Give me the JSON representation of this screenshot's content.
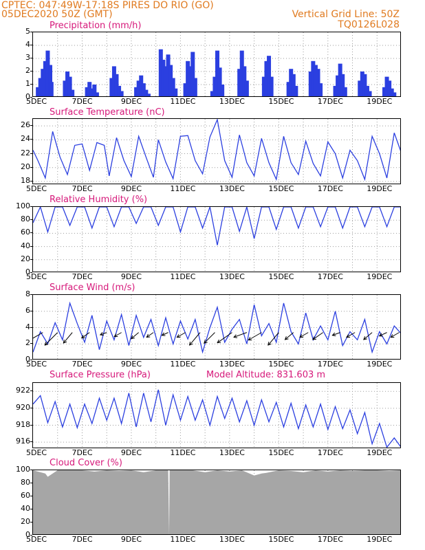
{
  "header": {
    "line1_left": "CPTEC:   047:49W-17:18S   PIRES DO RIO (GO)",
    "line2_left": "05DEC2020 50Z (GMT)",
    "line2_right": "Vertical Grid Line: 50Z",
    "line3_right": "TQ0126L028",
    "model_altitude": "Model Altitude: 831.603 m"
  },
  "colors": {
    "header": "#e07a1f",
    "title": "#d6187a",
    "series": "#2b3fe0",
    "cloud": "#a6a6a6"
  },
  "x_labels": [
    "5DEC",
    "7DEC",
    "9DEC",
    "11DEC",
    "13DEC",
    "15DEC",
    "17DEC",
    "19DEC"
  ],
  "chart_data": [
    {
      "type": "bar",
      "title": "Precipitation (mm/h)",
      "ylim": [
        0,
        5
      ],
      "yticks": [
        "0",
        "1",
        "2",
        "3",
        "4",
        "5"
      ],
      "x_range_days": [
        5,
        20
      ],
      "x": [
        5.2,
        5.3,
        5.4,
        5.5,
        5.6,
        5.7,
        5.75,
        6.3,
        6.4,
        6.5,
        6.6,
        7.2,
        7.3,
        7.4,
        7.5,
        7.6,
        8.2,
        8.3,
        8.4,
        8.5,
        8.6,
        9.2,
        9.3,
        9.4,
        9.5,
        9.6,
        9.7,
        10.2,
        10.3,
        10.4,
        10.5,
        10.6,
        10.7,
        10.8,
        11.2,
        11.3,
        11.4,
        11.5,
        11.6,
        12.3,
        12.4,
        12.5,
        12.6,
        12.7,
        13.4,
        13.5,
        13.6,
        13.7,
        14.4,
        14.5,
        14.6,
        14.7,
        15.4,
        15.5,
        15.6,
        15.7,
        16.3,
        16.4,
        16.5,
        16.6,
        16.7,
        17.3,
        17.4,
        17.5,
        17.6,
        17.7,
        18.3,
        18.4,
        18.5,
        18.6,
        18.7,
        19.3,
        19.4,
        19.5,
        19.6,
        19.7
      ],
      "values": [
        0.8,
        1.5,
        2.2,
        2.8,
        3.6,
        2.5,
        1.2,
        1.3,
        2.0,
        1.6,
        0.6,
        0.8,
        1.2,
        0.7,
        1.0,
        0.4,
        1.5,
        2.4,
        1.8,
        0.9,
        0.5,
        0.8,
        1.3,
        1.7,
        1.1,
        0.6,
        0.3,
        3.7,
        2.9,
        2.4,
        3.3,
        2.5,
        1.5,
        0.7,
        1.1,
        2.8,
        2.4,
        3.5,
        1.5,
        0.5,
        1.6,
        3.6,
        2.3,
        1.0,
        2.2,
        3.6,
        2.4,
        1.3,
        1.6,
        2.8,
        3.2,
        1.6,
        1.2,
        2.2,
        1.8,
        0.9,
        2.0,
        2.8,
        2.5,
        2.2,
        1.1,
        0.9,
        1.7,
        2.6,
        1.8,
        0.8,
        1.3,
        2.0,
        1.8,
        0.9,
        0.5,
        0.8,
        1.6,
        1.3,
        0.7,
        0.4
      ]
    },
    {
      "type": "line",
      "title": "Surface Temperature (nC)",
      "ylim": [
        17.5,
        27
      ],
      "yticks": [
        "18",
        "20",
        "22",
        "24",
        "26"
      ],
      "x_range_days": [
        5,
        20
      ],
      "x": [
        5.0,
        5.2,
        5.5,
        5.8,
        6.1,
        6.4,
        6.7,
        7.0,
        7.3,
        7.6,
        7.9,
        8.1,
        8.4,
        8.7,
        9.0,
        9.3,
        9.6,
        9.9,
        10.1,
        10.4,
        10.7,
        11.0,
        11.3,
        11.6,
        11.9,
        12.2,
        12.5,
        12.8,
        13.1,
        13.4,
        13.7,
        14.0,
        14.3,
        14.6,
        14.9,
        15.2,
        15.5,
        15.8,
        16.1,
        16.4,
        16.7,
        17.0,
        17.3,
        17.6,
        17.9,
        18.2,
        18.5,
        18.8,
        19.1,
        19.4,
        19.7,
        20.0
      ],
      "values": [
        22.5,
        21.0,
        18.5,
        25.2,
        21.5,
        19.0,
        23.2,
        23.4,
        19.6,
        23.6,
        23.2,
        18.8,
        24.3,
        21.0,
        18.7,
        24.5,
        21.5,
        18.6,
        24.0,
        20.8,
        18.4,
        24.5,
        24.6,
        21.0,
        19.1,
        24.4,
        26.9,
        21.0,
        18.6,
        24.7,
        20.7,
        18.8,
        24.2,
        20.7,
        18.3,
        24.5,
        20.7,
        19.0,
        23.8,
        20.6,
        18.8,
        23.7,
        22.0,
        18.5,
        22.5,
        21.0,
        18.3,
        24.5,
        22.0,
        18.5,
        25.0,
        22.0
      ]
    },
    {
      "type": "line",
      "title": "Relative Humidity (%)",
      "ylim": [
        0,
        100
      ],
      "yticks": [
        "0",
        "20",
        "40",
        "60",
        "80",
        "100"
      ],
      "x_range_days": [
        5,
        20
      ],
      "x": [
        5.0,
        5.3,
        5.6,
        5.9,
        6.2,
        6.5,
        6.8,
        7.1,
        7.4,
        7.7,
        8.0,
        8.3,
        8.6,
        8.9,
        9.2,
        9.5,
        9.8,
        10.1,
        10.4,
        10.7,
        11.0,
        11.3,
        11.6,
        11.9,
        12.2,
        12.5,
        12.8,
        13.1,
        13.4,
        13.7,
        14.0,
        14.3,
        14.6,
        14.9,
        15.2,
        15.5,
        15.8,
        16.1,
        16.4,
        16.7,
        17.0,
        17.3,
        17.6,
        17.9,
        18.2,
        18.5,
        18.8,
        19.1,
        19.4,
        19.7,
        20.0
      ],
      "values": [
        76,
        100,
        62,
        100,
        100,
        72,
        100,
        100,
        68,
        100,
        100,
        70,
        100,
        100,
        75,
        100,
        100,
        72,
        100,
        100,
        62,
        100,
        100,
        68,
        100,
        42,
        100,
        100,
        63,
        100,
        52,
        100,
        100,
        66,
        100,
        100,
        68,
        100,
        100,
        70,
        100,
        100,
        68,
        100,
        100,
        70,
        100,
        100,
        70,
        100,
        100
      ]
    },
    {
      "type": "line",
      "title": "Surface Wind (m/s)",
      "ylim": [
        0,
        8
      ],
      "yticks": [
        "0",
        "2",
        "4",
        "6",
        "8"
      ],
      "x_range_days": [
        5,
        20
      ],
      "x": [
        5.0,
        5.3,
        5.6,
        5.9,
        6.2,
        6.5,
        6.8,
        7.1,
        7.4,
        7.7,
        8.0,
        8.3,
        8.6,
        8.9,
        9.2,
        9.5,
        9.8,
        10.1,
        10.4,
        10.7,
        11.0,
        11.3,
        11.6,
        11.9,
        12.2,
        12.5,
        12.8,
        13.1,
        13.4,
        13.7,
        14.0,
        14.3,
        14.6,
        14.9,
        15.2,
        15.5,
        15.8,
        16.1,
        16.4,
        16.7,
        17.0,
        17.3,
        17.6,
        17.9,
        18.2,
        18.5,
        18.8,
        19.1,
        19.4,
        19.7,
        20.0
      ],
      "values": [
        1.0,
        3.5,
        2.0,
        4.6,
        2.5,
        7.0,
        4.5,
        2.2,
        5.5,
        1.3,
        4.8,
        2.5,
        5.6,
        1.8,
        5.5,
        2.8,
        5.0,
        1.8,
        5.2,
        2.0,
        4.8,
        2.6,
        5.0,
        1.0,
        4.0,
        6.5,
        2.2,
        3.8,
        5.0,
        2.0,
        6.8,
        3.0,
        4.5,
        2.2,
        7.0,
        3.5,
        2.0,
        5.8,
        2.5,
        4.2,
        2.5,
        6.0,
        1.8,
        3.5,
        2.5,
        5.0,
        1.0,
        3.5,
        2.0,
        4.2,
        3.2
      ]
    },
    {
      "type": "line",
      "title": "Surface Pressure (hPa)",
      "ylim": [
        915.2,
        923
      ],
      "yticks": [
        "916",
        "918",
        "920",
        "922"
      ],
      "x_range_days": [
        5,
        20
      ],
      "x": [
        5.0,
        5.3,
        5.6,
        5.9,
        6.2,
        6.5,
        6.8,
        7.1,
        7.4,
        7.7,
        8.0,
        8.3,
        8.6,
        8.9,
        9.2,
        9.5,
        9.8,
        10.1,
        10.4,
        10.7,
        11.0,
        11.3,
        11.6,
        11.9,
        12.2,
        12.5,
        12.8,
        13.1,
        13.4,
        13.7,
        14.0,
        14.3,
        14.6,
        14.9,
        15.2,
        15.5,
        15.8,
        16.1,
        16.4,
        16.7,
        17.0,
        17.3,
        17.6,
        17.9,
        18.2,
        18.5,
        18.8,
        19.1,
        19.4,
        19.7,
        20.0
      ],
      "values": [
        920.5,
        921.5,
        918.3,
        920.8,
        917.8,
        920.5,
        917.7,
        920.5,
        918.2,
        921.2,
        918.6,
        921.2,
        918.2,
        921.8,
        917.8,
        921.8,
        918.4,
        922.2,
        918.0,
        921.6,
        918.6,
        921.4,
        918.6,
        921.0,
        918.0,
        921.4,
        918.8,
        921.2,
        918.4,
        920.9,
        918.0,
        921.0,
        918.4,
        920.7,
        917.8,
        920.6,
        917.6,
        920.4,
        917.8,
        920.5,
        917.5,
        920.2,
        917.6,
        919.8,
        917.0,
        919.5,
        915.8,
        918.2,
        915.4,
        916.5,
        915.3
      ]
    },
    {
      "type": "area",
      "title": "Cloud Cover (%)",
      "ylim": [
        0,
        100
      ],
      "yticks": [
        "0",
        "20",
        "40",
        "60",
        "80",
        "100"
      ],
      "x_range_days": [
        5,
        20
      ],
      "x": [
        5.0,
        5.5,
        5.6,
        6.0,
        7.0,
        7.5,
        8.0,
        8.5,
        9.0,
        9.5,
        10.0,
        10.5,
        10.54,
        10.56,
        11.0,
        11.5,
        12.0,
        12.5,
        13.0,
        13.5,
        14.0,
        14.3,
        14.5,
        15.0,
        15.5,
        16.0,
        16.5,
        17.0,
        17.5,
        18.0,
        18.5,
        19.0,
        19.5,
        20.0
      ],
      "values": [
        100,
        95,
        90,
        100,
        100,
        98,
        100,
        99,
        100,
        97,
        100,
        100,
        0,
        100,
        100,
        100,
        97,
        100,
        98,
        100,
        92,
        95,
        96,
        100,
        99,
        97,
        100,
        98,
        100,
        99,
        100,
        100,
        99,
        100
      ]
    }
  ]
}
